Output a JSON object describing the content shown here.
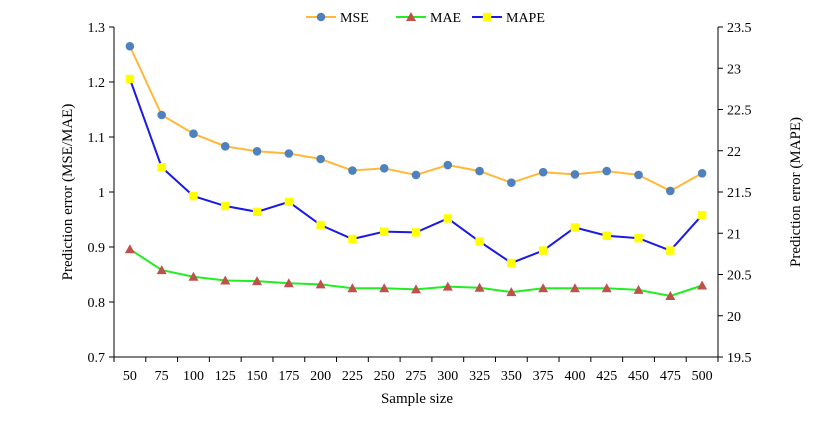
{
  "chart_data": {
    "type": "line",
    "title": "",
    "xlabel": "Sample size",
    "ylabel": "Prediction error (MSE/MAE)",
    "y2label": "Prediction error (MAPE)",
    "categories": [
      "50",
      "75",
      "100",
      "125",
      "150",
      "175",
      "200",
      "225",
      "250",
      "275",
      "300",
      "325",
      "350",
      "375",
      "400",
      "425",
      "450",
      "475",
      "500"
    ],
    "ylim": [
      0.7,
      1.3
    ],
    "yticks": [
      "0.7",
      "0.8",
      "0.9",
      "1",
      "1.1",
      "1.2",
      "1.3"
    ],
    "y2lim": [
      19.5,
      23.5
    ],
    "y2ticks": [
      "19.5",
      "20",
      "20.5",
      "21",
      "21.5",
      "22",
      "22.5",
      "23",
      "23.5"
    ],
    "grid": false,
    "legend": "top-center",
    "series": [
      {
        "name": "MSE",
        "axis": "left",
        "color": "#FFB83A",
        "marker": "circle",
        "marker_color": "#4F81BD",
        "values": [
          1.265,
          1.14,
          1.106,
          1.083,
          1.074,
          1.07,
          1.06,
          1.039,
          1.043,
          1.031,
          1.049,
          1.038,
          1.017,
          1.036,
          1.032,
          1.038,
          1.031,
          1.002,
          1.034
        ]
      },
      {
        "name": "MAE",
        "axis": "left",
        "color": "#22EE22",
        "marker": "triangle",
        "marker_color": "#C0504D",
        "values": [
          0.896,
          0.858,
          0.846,
          0.839,
          0.838,
          0.834,
          0.832,
          0.825,
          0.825,
          0.823,
          0.828,
          0.826,
          0.818,
          0.825,
          0.825,
          0.825,
          0.822,
          0.811,
          0.83
        ]
      },
      {
        "name": "MAPE",
        "axis": "right",
        "color": "#1A1AE6",
        "marker": "square",
        "marker_color": "#FFFF00",
        "values": [
          22.87,
          21.8,
          21.45,
          21.33,
          21.26,
          21.38,
          21.1,
          20.93,
          21.02,
          21.01,
          21.18,
          20.9,
          20.64,
          20.79,
          21.07,
          20.97,
          20.94,
          20.79,
          21.22
        ]
      }
    ]
  }
}
